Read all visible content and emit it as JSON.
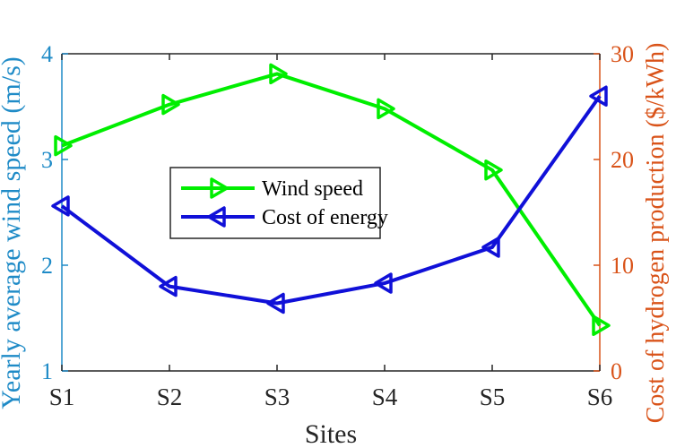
{
  "chart_data": {
    "type": "line",
    "title": "",
    "xlabel": "Sites",
    "ylabel_left": "Yearly average wind speed (m/s)",
    "ylabel_right": "Cost of hydrogen production ($/kWh)",
    "categories": [
      "S1",
      "S2",
      "S3",
      "S4",
      "S5",
      "S6"
    ],
    "ylim_left": [
      1,
      4
    ],
    "yticks_left": [
      "1",
      "2",
      "3",
      "4"
    ],
    "ylim_right": [
      0,
      30
    ],
    "yticks_right": [
      "0",
      "10",
      "20",
      "30"
    ],
    "grid": false,
    "legend_position": "center",
    "series": [
      {
        "name": "Wind speed",
        "axis": "left",
        "marker": "triangle-right",
        "color": "#00ee00",
        "values": [
          3.13,
          3.52,
          3.81,
          3.48,
          2.9,
          1.43
        ]
      },
      {
        "name": "Cost of energy",
        "axis": "right",
        "marker": "triangle-left",
        "color": "#1010d8",
        "values": [
          15.6,
          8.0,
          6.4,
          8.3,
          11.7,
          26.0
        ]
      }
    ],
    "colors": {
      "left_axis": "#1f8bc7",
      "right_axis": "#d95319",
      "frame": "#262626"
    }
  }
}
